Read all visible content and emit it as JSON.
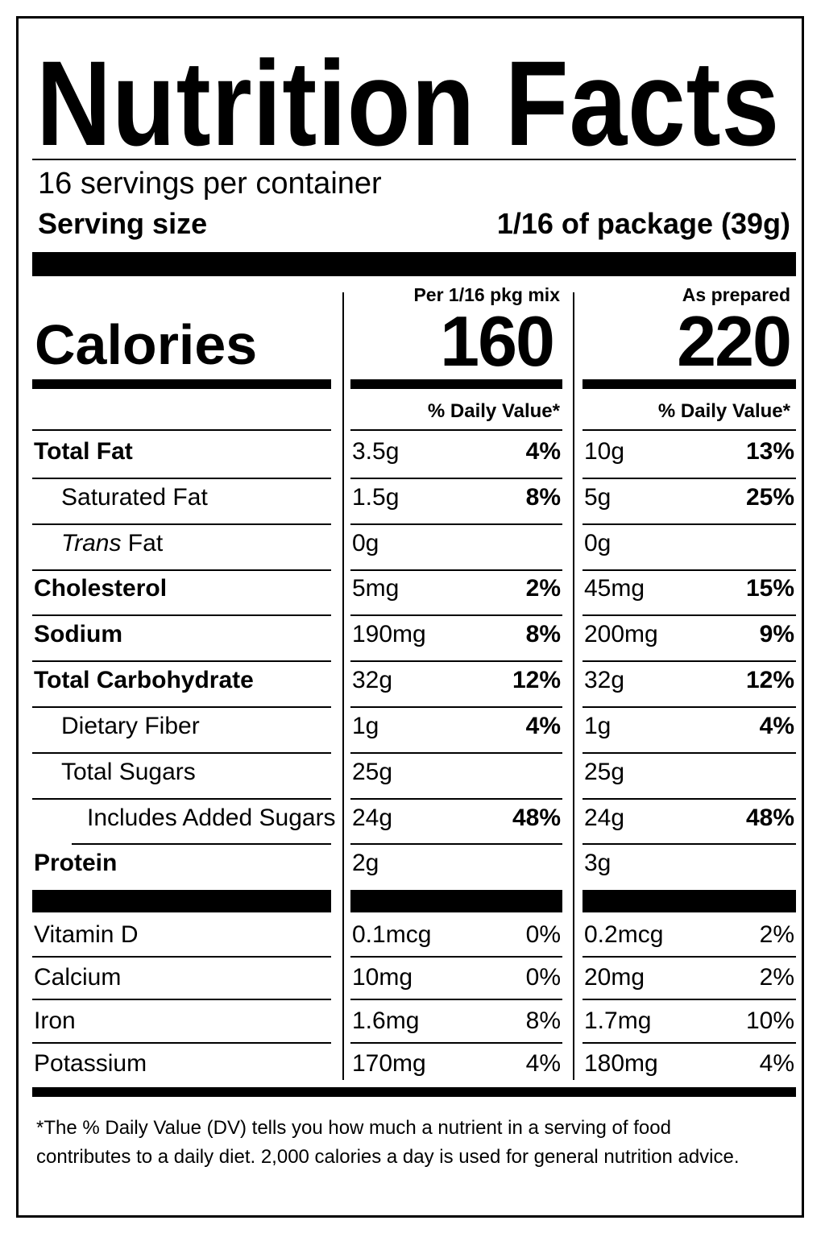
{
  "title": "Nutrition Facts",
  "servings_per_container": "16 servings per container",
  "serving_size_label": "Serving size",
  "serving_size_value": "1/16 of package (39g)",
  "columns": [
    {
      "heading": "Per 1/16 pkg mix",
      "calories": "160",
      "dv_heading": "% Daily Value*"
    },
    {
      "heading": "As prepared",
      "calories": "220",
      "dv_heading": "% Daily Value*"
    }
  ],
  "calories_label": "Calories",
  "nutrients": [
    {
      "label": "Total Fat",
      "mix_amount": "3.5g",
      "mix_dv": "4%",
      "prep_amount": "10g",
      "prep_dv": "13%"
    },
    {
      "label": "Saturated Fat",
      "mix_amount": "1.5g",
      "mix_dv": "8%",
      "prep_amount": "5g",
      "prep_dv": "25%"
    },
    {
      "label": "Trans",
      "label_suffix": " Fat",
      "mix_amount": "0g",
      "mix_dv": "",
      "prep_amount": "0g",
      "prep_dv": ""
    },
    {
      "label": "Cholesterol",
      "mix_amount": "5mg",
      "mix_dv": "2%",
      "prep_amount": "45mg",
      "prep_dv": "15%"
    },
    {
      "label": "Sodium",
      "mix_amount": "190mg",
      "mix_dv": "8%",
      "prep_amount": "200mg",
      "prep_dv": "9%"
    },
    {
      "label": "Total Carbohydrate",
      "mix_amount": "32g",
      "mix_dv": "12%",
      "prep_amount": "32g",
      "prep_dv": "12%"
    },
    {
      "label": "Dietary Fiber",
      "mix_amount": "1g",
      "mix_dv": "4%",
      "prep_amount": "1g",
      "prep_dv": "4%"
    },
    {
      "label": "Total Sugars",
      "mix_amount": "25g",
      "mix_dv": "",
      "prep_amount": "25g",
      "prep_dv": ""
    },
    {
      "label": "Includes Added Sugars",
      "mix_amount": "24g",
      "mix_dv": "48%",
      "prep_amount": "24g",
      "prep_dv": "48%"
    },
    {
      "label": "Protein",
      "mix_amount": "2g",
      "mix_dv": "",
      "prep_amount": "3g",
      "prep_dv": ""
    }
  ],
  "vitamins": [
    {
      "label": "Vitamin D",
      "mix_amount": "0.1mcg",
      "mix_dv": "0%",
      "prep_amount": "0.2mcg",
      "prep_dv": "2%"
    },
    {
      "label": "Calcium",
      "mix_amount": "10mg",
      "mix_dv": "0%",
      "prep_amount": "20mg",
      "prep_dv": "2%"
    },
    {
      "label": "Iron",
      "mix_amount": "1.6mg",
      "mix_dv": "8%",
      "prep_amount": "1.7mg",
      "prep_dv": "10%"
    },
    {
      "label": "Potassium",
      "mix_amount": "170mg",
      "mix_dv": "4%",
      "prep_amount": "180mg",
      "prep_dv": "4%"
    }
  ],
  "footnote": "*The % Daily Value (DV) tells you how much a nutrient in a serving of food contributes to a daily diet. 2,000 calories a day is used for general nutrition advice."
}
